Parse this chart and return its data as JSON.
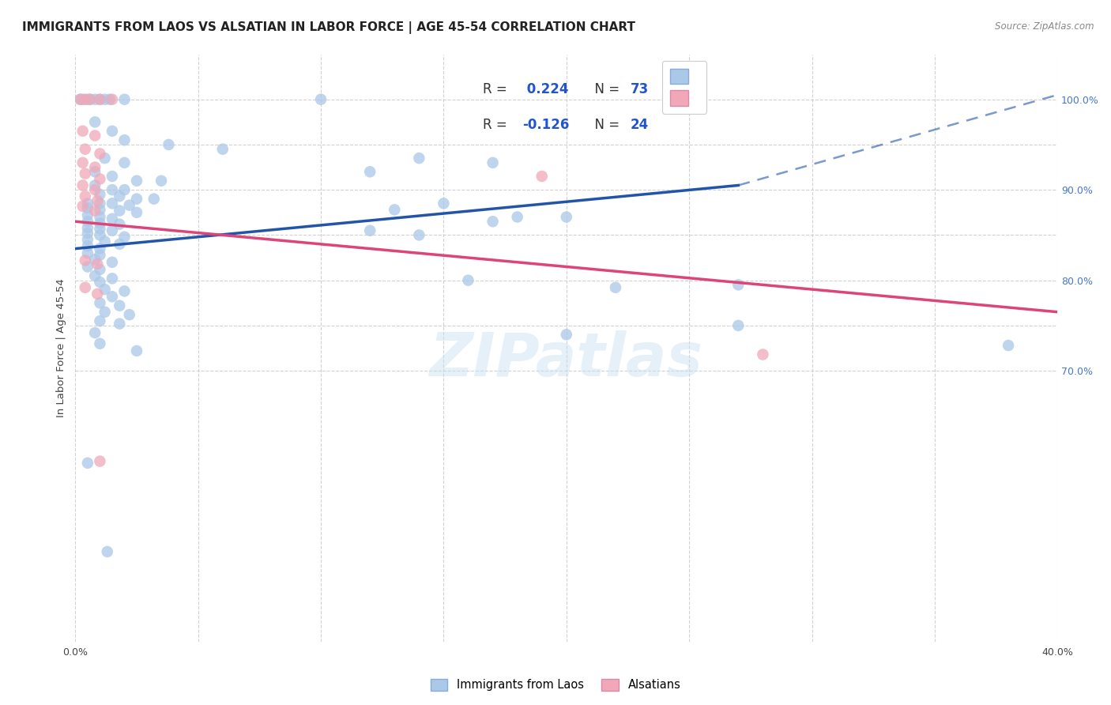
{
  "title": "IMMIGRANTS FROM LAOS VS ALSATIAN IN LABOR FORCE | AGE 45-54 CORRELATION CHART",
  "source": "Source: ZipAtlas.com",
  "ylabel": "In Labor Force | Age 45-54",
  "xlim": [
    0.0,
    0.4
  ],
  "ylim": [
    0.4,
    1.05
  ],
  "legend_R_blue": "0.224",
  "legend_N_blue": "73",
  "legend_R_pink": "-0.126",
  "legend_N_pink": "24",
  "watermark": "ZIPatlas",
  "blue_color": "#aac8e8",
  "pink_color": "#f0a8b8",
  "blue_line_color": "#2255aa",
  "pink_line_color": "#dd4477",
  "blue_trendline_solid": [
    [
      0.0,
      0.835
    ],
    [
      0.27,
      0.905
    ]
  ],
  "blue_trendline_dashed": [
    [
      0.27,
      0.905
    ],
    [
      0.4,
      1.005
    ]
  ],
  "pink_trendline": [
    [
      0.0,
      0.865
    ],
    [
      0.4,
      0.765
    ]
  ],
  "background_color": "#ffffff",
  "grid_color": "#cccccc",
  "y_grid_positions": [
    0.7,
    0.75,
    0.8,
    0.85,
    0.9,
    0.95,
    1.0
  ],
  "y_right_labels": [
    "70.0%",
    "",
    "80.0%",
    "",
    "90.0%",
    "",
    "100.0%"
  ],
  "x_tick_positions": [
    0.0,
    0.05,
    0.1,
    0.15,
    0.2,
    0.25,
    0.3,
    0.35,
    0.4
  ],
  "x_tick_labels": [
    "0.0%",
    "",
    "",
    "",
    "",
    "",
    "",
    "",
    "40.0%"
  ],
  "title_fontsize": 11,
  "tick_fontsize": 9,
  "blue_scatter": [
    [
      0.002,
      1.0
    ],
    [
      0.003,
      1.0
    ],
    [
      0.005,
      1.0
    ],
    [
      0.006,
      1.0
    ],
    [
      0.008,
      1.0
    ],
    [
      0.01,
      1.0
    ],
    [
      0.012,
      1.0
    ],
    [
      0.014,
      1.0
    ],
    [
      0.02,
      1.0
    ],
    [
      0.1,
      1.0
    ],
    [
      0.008,
      0.975
    ],
    [
      0.015,
      0.965
    ],
    [
      0.02,
      0.955
    ],
    [
      0.038,
      0.95
    ],
    [
      0.06,
      0.945
    ],
    [
      0.012,
      0.935
    ],
    [
      0.02,
      0.93
    ],
    [
      0.008,
      0.92
    ],
    [
      0.015,
      0.915
    ],
    [
      0.025,
      0.91
    ],
    [
      0.035,
      0.91
    ],
    [
      0.008,
      0.905
    ],
    [
      0.015,
      0.9
    ],
    [
      0.02,
      0.9
    ],
    [
      0.01,
      0.895
    ],
    [
      0.018,
      0.893
    ],
    [
      0.025,
      0.89
    ],
    [
      0.032,
      0.89
    ],
    [
      0.005,
      0.885
    ],
    [
      0.01,
      0.885
    ],
    [
      0.015,
      0.885
    ],
    [
      0.022,
      0.883
    ],
    [
      0.005,
      0.88
    ],
    [
      0.01,
      0.878
    ],
    [
      0.018,
      0.877
    ],
    [
      0.025,
      0.875
    ],
    [
      0.005,
      0.872
    ],
    [
      0.01,
      0.87
    ],
    [
      0.015,
      0.868
    ],
    [
      0.005,
      0.865
    ],
    [
      0.01,
      0.863
    ],
    [
      0.018,
      0.862
    ],
    [
      0.005,
      0.858
    ],
    [
      0.01,
      0.857
    ],
    [
      0.015,
      0.855
    ],
    [
      0.005,
      0.852
    ],
    [
      0.01,
      0.85
    ],
    [
      0.02,
      0.848
    ],
    [
      0.005,
      0.845
    ],
    [
      0.012,
      0.843
    ],
    [
      0.018,
      0.84
    ],
    [
      0.005,
      0.838
    ],
    [
      0.01,
      0.835
    ],
    [
      0.005,
      0.83
    ],
    [
      0.01,
      0.828
    ],
    [
      0.008,
      0.823
    ],
    [
      0.015,
      0.82
    ],
    [
      0.005,
      0.815
    ],
    [
      0.01,
      0.812
    ],
    [
      0.008,
      0.805
    ],
    [
      0.015,
      0.802
    ],
    [
      0.01,
      0.798
    ],
    [
      0.012,
      0.79
    ],
    [
      0.02,
      0.788
    ],
    [
      0.015,
      0.782
    ],
    [
      0.01,
      0.775
    ],
    [
      0.018,
      0.772
    ],
    [
      0.012,
      0.765
    ],
    [
      0.022,
      0.762
    ],
    [
      0.01,
      0.755
    ],
    [
      0.018,
      0.752
    ],
    [
      0.008,
      0.742
    ],
    [
      0.01,
      0.73
    ],
    [
      0.025,
      0.722
    ],
    [
      0.005,
      0.598
    ],
    [
      0.013,
      0.5
    ],
    [
      0.14,
      0.935
    ],
    [
      0.17,
      0.93
    ],
    [
      0.12,
      0.92
    ],
    [
      0.15,
      0.885
    ],
    [
      0.13,
      0.878
    ],
    [
      0.18,
      0.87
    ],
    [
      0.17,
      0.865
    ],
    [
      0.12,
      0.855
    ],
    [
      0.14,
      0.85
    ],
    [
      0.2,
      0.87
    ],
    [
      0.16,
      0.8
    ],
    [
      0.22,
      0.792
    ],
    [
      0.27,
      0.795
    ],
    [
      0.27,
      0.75
    ],
    [
      0.2,
      0.74
    ],
    [
      0.38,
      0.728
    ]
  ],
  "pink_scatter": [
    [
      0.002,
      1.0
    ],
    [
      0.004,
      1.0
    ],
    [
      0.006,
      1.0
    ],
    [
      0.01,
      1.0
    ],
    [
      0.015,
      1.0
    ],
    [
      0.003,
      0.965
    ],
    [
      0.008,
      0.96
    ],
    [
      0.004,
      0.945
    ],
    [
      0.01,
      0.94
    ],
    [
      0.003,
      0.93
    ],
    [
      0.008,
      0.925
    ],
    [
      0.004,
      0.918
    ],
    [
      0.01,
      0.912
    ],
    [
      0.003,
      0.905
    ],
    [
      0.008,
      0.9
    ],
    [
      0.004,
      0.893
    ],
    [
      0.009,
      0.888
    ],
    [
      0.003,
      0.882
    ],
    [
      0.008,
      0.877
    ],
    [
      0.004,
      0.822
    ],
    [
      0.009,
      0.818
    ],
    [
      0.004,
      0.792
    ],
    [
      0.009,
      0.785
    ],
    [
      0.01,
      0.6
    ],
    [
      0.19,
      0.915
    ],
    [
      0.28,
      0.718
    ]
  ]
}
